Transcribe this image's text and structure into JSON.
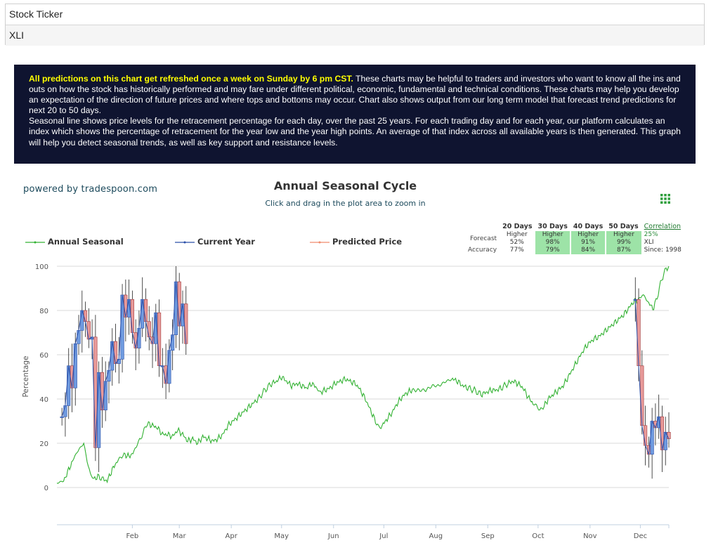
{
  "ticker": {
    "label": "Stock Ticker",
    "value": "XLI"
  },
  "banner": {
    "highlight": "All predictions on this chart get refreshed once a week on Sunday by 6 pm CST.",
    "text1": " These charts may be helpful to traders and investors who want to know all the ins and outs on how the stock has historically performed and may fare under different political, economic, fundamental and technical conditions. These charts may help you develop an expectation of the direction of future prices and where tops and bottoms may occur. Chart also shows output from our long term model that forecast trend predictions for next 20 to 50 days.",
    "text2": "Seasonal line shows price levels for the retracement percentage for each day, over the past 25 years. For each trading day and for each year, our platform calculates an index which shows the percentage of retracement for the year low and the year high points. An average of that index across all available years is then generated. This graph will help you detect seasonal trends, as well as key support and resistance levels."
  },
  "powered_by": "powered by tradespoon.com",
  "forecast_table": {
    "headers": [
      "20 Days",
      "30 Days",
      "40 Days",
      "50 Days"
    ],
    "correlation_label": "Correlation",
    "forecast_label": "Forecast",
    "accuracy_label": "Accuracy",
    "forecast_dir": [
      "Higher",
      "Higher",
      "Higher",
      "Higher"
    ],
    "forecast_pct": [
      "52%",
      "98%",
      "91%",
      "99%"
    ],
    "accuracy": [
      "77%",
      "79%",
      "84%",
      "87%"
    ],
    "corr_value": "25%",
    "corr_symbol": "XLI",
    "corr_since": "Since: 1998"
  },
  "colors": {
    "seasonal": "#33b233",
    "current": "#2b4fa8",
    "predicted": "#f08a6c",
    "bull_candle": "#6f9be0",
    "bear_candle": "#e89a9a",
    "grid": "#d8d8d8"
  },
  "menu_icon": "grid-menu-icon",
  "chart_data": {
    "type": "line",
    "title": "Annual Seasonal Cycle",
    "subtitle": "Click and drag in the plot area to zoom in",
    "ylabel": "Percentage",
    "xlabel": "",
    "ylim": [
      0,
      100
    ],
    "yticks": [
      0,
      20,
      40,
      60,
      80,
      100
    ],
    "x_range": [
      0,
      365
    ],
    "month_ticks": [
      {
        "label": "Feb",
        "day": 45
      },
      {
        "label": "Mar",
        "day": 73
      },
      {
        "label": "Apr",
        "day": 104
      },
      {
        "label": "May",
        "day": 134
      },
      {
        "label": "Jun",
        "day": 165
      },
      {
        "label": "Jul",
        "day": 195
      },
      {
        "label": "Aug",
        "day": 226
      },
      {
        "label": "Sep",
        "day": 257
      },
      {
        "label": "Oct",
        "day": 287
      },
      {
        "label": "Nov",
        "day": 318
      },
      {
        "label": "Dec",
        "day": 348
      }
    ],
    "grid": true,
    "legend": [
      "Annual Seasonal",
      "Current Year",
      "Predicted Price"
    ],
    "series": [
      {
        "name": "Annual Seasonal",
        "points": [
          [
            0,
            2
          ],
          [
            4,
            3
          ],
          [
            7,
            8
          ],
          [
            10,
            13
          ],
          [
            12,
            16
          ],
          [
            14,
            18
          ],
          [
            16,
            20
          ],
          [
            18,
            12
          ],
          [
            20,
            6
          ],
          [
            22,
            4
          ],
          [
            25,
            5
          ],
          [
            27,
            4
          ],
          [
            30,
            3
          ],
          [
            33,
            8
          ],
          [
            36,
            12
          ],
          [
            40,
            15
          ],
          [
            43,
            14
          ],
          [
            46,
            16
          ],
          [
            48,
            20
          ],
          [
            50,
            22
          ],
          [
            52,
            26
          ],
          [
            54,
            29
          ],
          [
            57,
            28
          ],
          [
            60,
            27
          ],
          [
            63,
            24
          ],
          [
            66,
            24
          ],
          [
            69,
            23
          ],
          [
            72,
            26
          ],
          [
            75,
            24
          ],
          [
            78,
            21
          ],
          [
            81,
            22
          ],
          [
            84,
            20
          ],
          [
            87,
            23
          ],
          [
            90,
            22
          ],
          [
            93,
            21
          ],
          [
            96,
            22
          ],
          [
            99,
            24
          ],
          [
            102,
            28
          ],
          [
            105,
            30
          ],
          [
            108,
            32
          ],
          [
            111,
            34
          ],
          [
            114,
            36
          ],
          [
            117,
            38
          ],
          [
            120,
            40
          ],
          [
            124,
            44
          ],
          [
            128,
            47
          ],
          [
            131,
            48
          ],
          [
            134,
            50
          ],
          [
            137,
            48
          ],
          [
            140,
            46
          ],
          [
            143,
            47
          ],
          [
            146,
            46
          ],
          [
            149,
            45
          ],
          [
            152,
            47
          ],
          [
            155,
            45
          ],
          [
            157,
            43
          ],
          [
            160,
            44
          ],
          [
            163,
            45
          ],
          [
            166,
            47
          ],
          [
            169,
            48
          ],
          [
            172,
            49
          ],
          [
            175,
            48
          ],
          [
            178,
            47
          ],
          [
            181,
            44
          ],
          [
            184,
            40
          ],
          [
            187,
            35
          ],
          [
            190,
            30
          ],
          [
            192,
            27
          ],
          [
            194,
            28
          ],
          [
            197,
            31
          ],
          [
            200,
            34
          ],
          [
            203,
            38
          ],
          [
            206,
            41
          ],
          [
            209,
            43
          ],
          [
            212,
            44
          ],
          [
            216,
            44
          ],
          [
            220,
            44
          ],
          [
            224,
            46
          ],
          [
            228,
            46
          ],
          [
            232,
            48
          ],
          [
            236,
            49
          ],
          [
            239,
            48
          ],
          [
            242,
            46
          ],
          [
            245,
            45
          ],
          [
            249,
            44
          ],
          [
            253,
            42
          ],
          [
            256,
            43
          ],
          [
            259,
            44
          ],
          [
            262,
            44
          ],
          [
            265,
            45
          ],
          [
            269,
            47
          ],
          [
            272,
            48
          ],
          [
            275,
            47
          ],
          [
            278,
            45
          ],
          [
            281,
            41
          ],
          [
            284,
            38
          ],
          [
            286,
            37
          ],
          [
            288,
            35
          ],
          [
            290,
            36
          ],
          [
            293,
            40
          ],
          [
            296,
            42
          ],
          [
            299,
            44
          ],
          [
            302,
            46
          ],
          [
            305,
            50
          ],
          [
            308,
            54
          ],
          [
            311,
            58
          ],
          [
            314,
            62
          ],
          [
            317,
            65
          ],
          [
            320,
            67
          ],
          [
            323,
            68
          ],
          [
            326,
            70
          ],
          [
            329,
            72
          ],
          [
            332,
            74
          ],
          [
            335,
            76
          ],
          [
            338,
            78
          ],
          [
            341,
            81
          ],
          [
            344,
            84
          ],
          [
            347,
            85
          ],
          [
            349,
            87
          ],
          [
            351,
            86
          ],
          [
            353,
            83
          ],
          [
            356,
            81
          ],
          [
            358,
            86
          ],
          [
            360,
            92
          ],
          [
            362,
            97
          ],
          [
            364,
            99
          ],
          [
            365,
            100
          ]
        ]
      },
      {
        "name": "Current Year",
        "candles": [
          [
            3,
            32
          ],
          [
            5,
            37
          ],
          [
            7,
            55
          ],
          [
            9,
            45
          ],
          [
            11,
            65
          ],
          [
            13,
            71
          ],
          [
            15,
            80
          ],
          [
            17,
            75
          ],
          [
            19,
            67
          ],
          [
            21,
            68
          ],
          [
            23,
            18
          ],
          [
            25,
            52
          ],
          [
            27,
            35
          ],
          [
            29,
            48
          ],
          [
            31,
            53
          ],
          [
            33,
            66
          ],
          [
            35,
            56
          ],
          [
            37,
            58
          ],
          [
            39,
            87
          ],
          [
            41,
            77
          ],
          [
            43,
            85
          ],
          [
            45,
            70
          ],
          [
            47,
            63
          ],
          [
            49,
            72
          ],
          [
            51,
            85
          ],
          [
            53,
            75
          ],
          [
            55,
            68
          ],
          [
            57,
            65
          ],
          [
            59,
            79
          ],
          [
            61,
            55
          ],
          [
            63,
            55
          ],
          [
            65,
            47
          ],
          [
            67,
            62
          ],
          [
            69,
            69
          ],
          [
            71,
            93
          ],
          [
            73,
            73
          ],
          [
            75,
            83
          ],
          [
            77,
            65
          ],
          [
            345,
            85
          ],
          [
            347,
            55
          ],
          [
            349,
            28
          ],
          [
            351,
            19
          ],
          [
            353,
            15
          ],
          [
            355,
            30
          ],
          [
            357,
            27
          ],
          [
            359,
            32
          ],
          [
            361,
            17
          ],
          [
            363,
            25
          ],
          [
            365,
            22
          ]
        ]
      },
      {
        "name": "Predicted Price",
        "values": []
      }
    ]
  }
}
